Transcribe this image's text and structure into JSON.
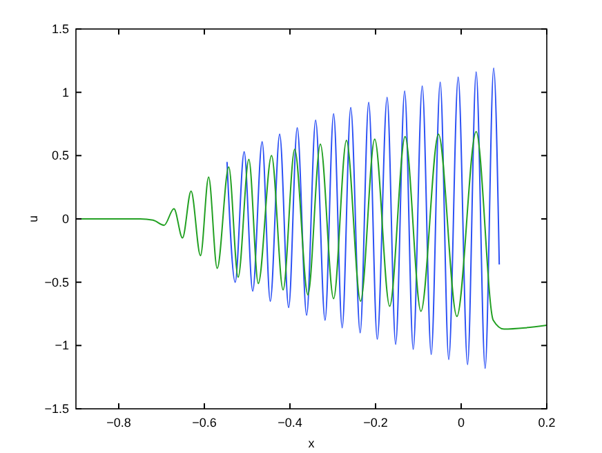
{
  "chart_data": {
    "type": "line",
    "xlabel": "x",
    "ylabel": "u",
    "xlim": [
      -0.9,
      0.2
    ],
    "ylim": [
      -1.5,
      1.5
    ],
    "xticks": [
      -0.8,
      -0.6,
      -0.4,
      -0.2,
      0,
      0.2
    ],
    "yticks": [
      -1.5,
      -1,
      -0.5,
      0,
      0.5,
      1,
      1.5
    ],
    "grid": false,
    "line_style": "solid",
    "marker": "none",
    "series": [
      {
        "color": "#2b50f5",
        "x": [
          -0.547,
          -0.528,
          -0.507,
          -0.487,
          -0.465,
          -0.446,
          -0.424,
          -0.403,
          -0.383,
          -0.361,
          -0.34,
          -0.318,
          -0.298,
          -0.278,
          -0.258,
          -0.236,
          -0.216,
          -0.196,
          -0.173,
          -0.153,
          -0.132,
          -0.112,
          -0.091,
          -0.07,
          -0.049,
          -0.029,
          -0.007,
          0.015,
          0.035,
          0.056,
          0.076,
          0.089
        ],
        "values": [
          0.45,
          -0.5,
          0.53,
          -0.57,
          0.61,
          -0.65,
          0.67,
          -0.7,
          0.72,
          -0.76,
          0.78,
          -0.8,
          0.83,
          -0.86,
          0.88,
          -0.9,
          0.92,
          -0.95,
          0.96,
          -0.99,
          1.01,
          -1.03,
          1.05,
          -1.07,
          1.08,
          -1.11,
          1.12,
          -1.15,
          1.16,
          -1.18,
          1.19,
          -0.36
        ]
      },
      {
        "color": "#22a022",
        "x": [
          -0.9,
          -0.75,
          -0.72,
          -0.694,
          -0.671,
          -0.651,
          -0.631,
          -0.609,
          -0.59,
          -0.57,
          -0.543,
          -0.521,
          -0.496,
          -0.474,
          -0.443,
          -0.416,
          -0.389,
          -0.358,
          -0.329,
          -0.298,
          -0.268,
          -0.235,
          -0.202,
          -0.167,
          -0.131,
          -0.094,
          -0.053,
          -0.01,
          0.035,
          0.075,
          0.1,
          0.15,
          0.2
        ],
        "values": [
          0,
          0,
          -0.01,
          -0.05,
          0.08,
          -0.15,
          0.22,
          -0.29,
          0.33,
          -0.39,
          0.41,
          -0.46,
          0.47,
          -0.51,
          0.5,
          -0.56,
          0.55,
          -0.6,
          0.59,
          -0.63,
          0.62,
          -0.65,
          0.63,
          -0.69,
          0.65,
          -0.73,
          0.67,
          -0.77,
          0.69,
          -0.8,
          -0.87,
          -0.86,
          -0.84
        ]
      }
    ]
  }
}
